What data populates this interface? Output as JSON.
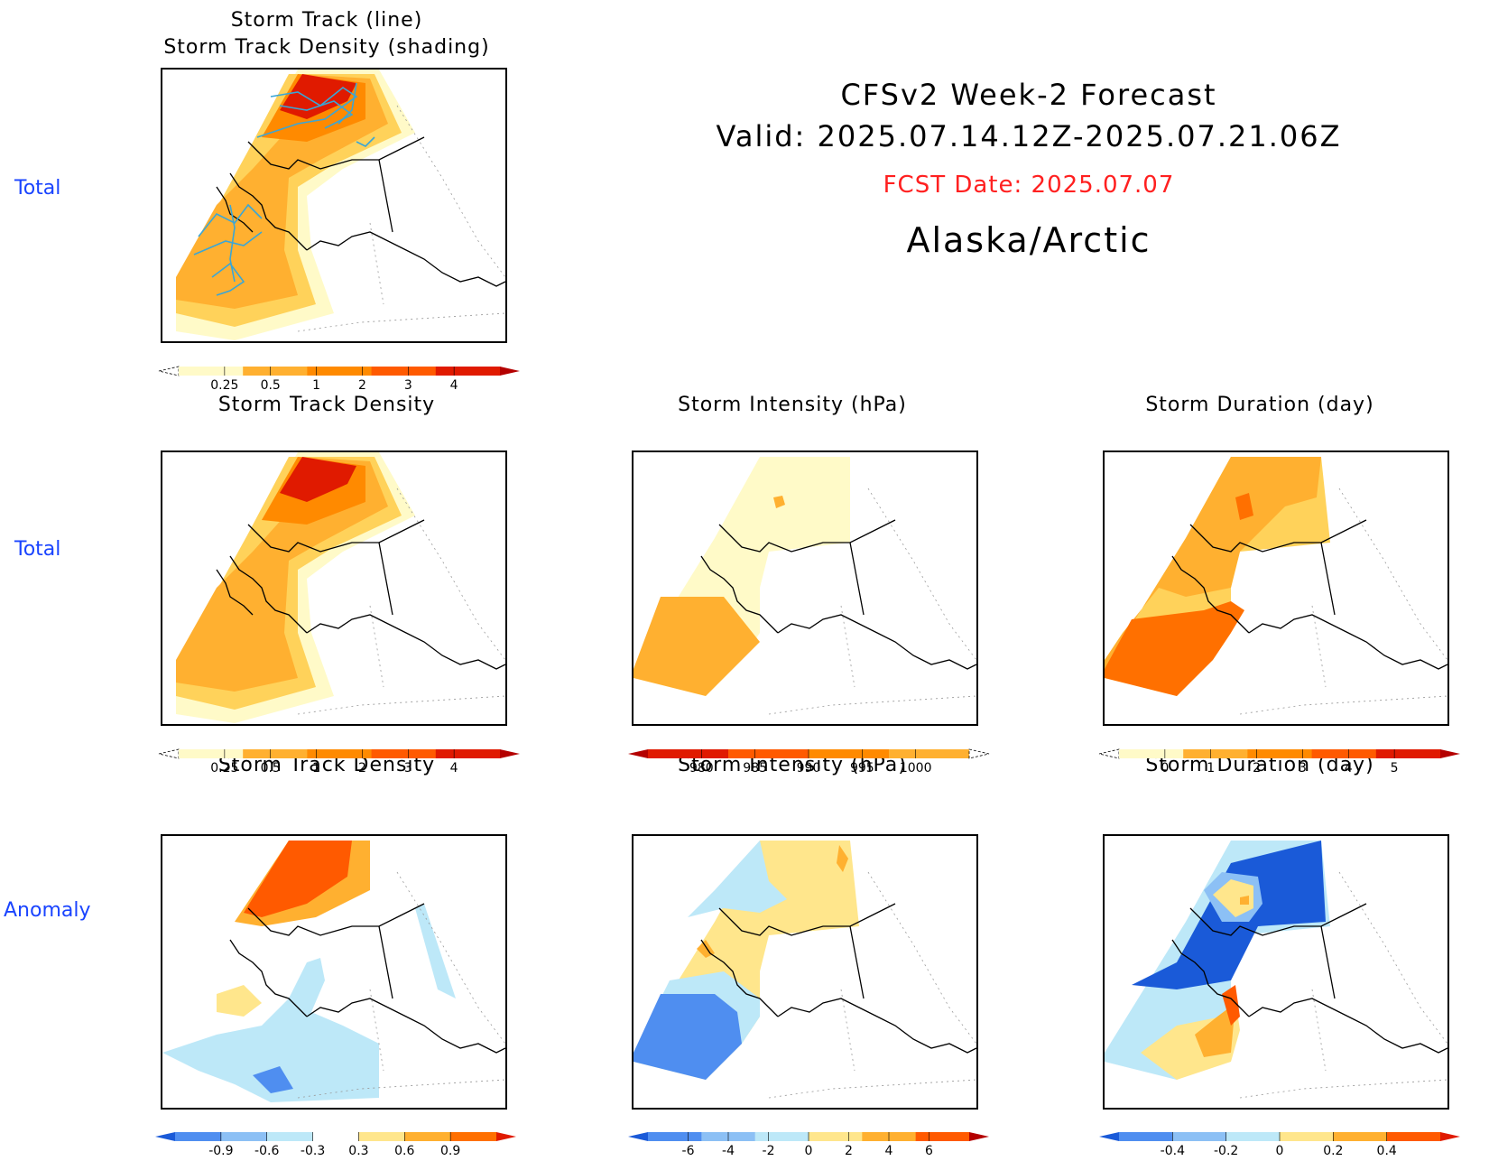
{
  "header": {
    "line1": "CFSv2 Week-2 Forecast",
    "line2": "Valid: 2025.07.14.12Z-2025.07.21.06Z",
    "fcst_date": "FCST Date: 2025.07.07",
    "region": "Alaska/Arctic"
  },
  "row_labels": [
    "Total",
    "Total",
    "Anomaly"
  ],
  "panels": {
    "p1": {
      "title1": "Storm Track (line)",
      "title2": "Storm Track Density (shading)"
    },
    "p2": {
      "title": "Storm Track Density"
    },
    "p3": {
      "title": "Storm Intensity (hPa)"
    },
    "p4": {
      "title": "Storm Duration (day)"
    },
    "p5": {
      "title": "Storm Track Density"
    },
    "p6": {
      "title": "Storm Intensity (hPa)"
    },
    "p7": {
      "title": "Storm Duration (day)"
    }
  },
  "colorbars": {
    "density": {
      "ticks": [
        "0.25",
        "0.5",
        "1",
        "2",
        "3",
        "4"
      ],
      "colors": [
        "#fffac8",
        "#ffd25a",
        "#ffb030",
        "#ff8a00",
        "#ff5a00",
        "#e01a00",
        "#b40000"
      ]
    },
    "intensity": {
      "ticks": [
        "980",
        "985",
        "990",
        "995",
        "1000"
      ],
      "colors": [
        "#b40000",
        "#e01a00",
        "#ff5a00",
        "#ff8a00",
        "#ffb030",
        "#fffac8"
      ]
    },
    "duration": {
      "ticks": [
        "0",
        "1",
        "2",
        "3",
        "4",
        "5"
      ],
      "colors": [
        "#fffac8",
        "#ffd25a",
        "#ffb030",
        "#ff8a00",
        "#ff5a00",
        "#e01a00",
        "#b40000"
      ]
    },
    "density_anom": {
      "ticks": [
        "-0.9",
        "-0.6",
        "-0.3",
        "0.3",
        "0.6",
        "0.9"
      ],
      "colors": [
        "#1a5ad8",
        "#4f8ef0",
        "#8cc0f5",
        "#bde8f8",
        "#ffffff",
        "#ffe68c",
        "#ffb030",
        "#ff7000",
        "#e01a00"
      ]
    },
    "intensity_anom": {
      "ticks": [
        "-6",
        "-4",
        "-2",
        "0",
        "2",
        "4",
        "6"
      ],
      "colors": [
        "#1a5ad8",
        "#4f8ef0",
        "#8cc0f5",
        "#bde8f8",
        "#ffe68c",
        "#ffb030",
        "#ff5a00",
        "#b40000"
      ]
    },
    "duration_anom": {
      "ticks": [
        "-0.4",
        "-0.2",
        "0",
        "0.2",
        "0.4"
      ],
      "colors": [
        "#1a5ad8",
        "#4f8ef0",
        "#8cc0f5",
        "#bde8f8",
        "#ffe68c",
        "#ffb030",
        "#ff5a00",
        "#e01a00"
      ]
    }
  },
  "colors": {
    "title_red": "#ff2020",
    "label_blue": "#1a44ff",
    "track_line": "#3aa6d6"
  }
}
